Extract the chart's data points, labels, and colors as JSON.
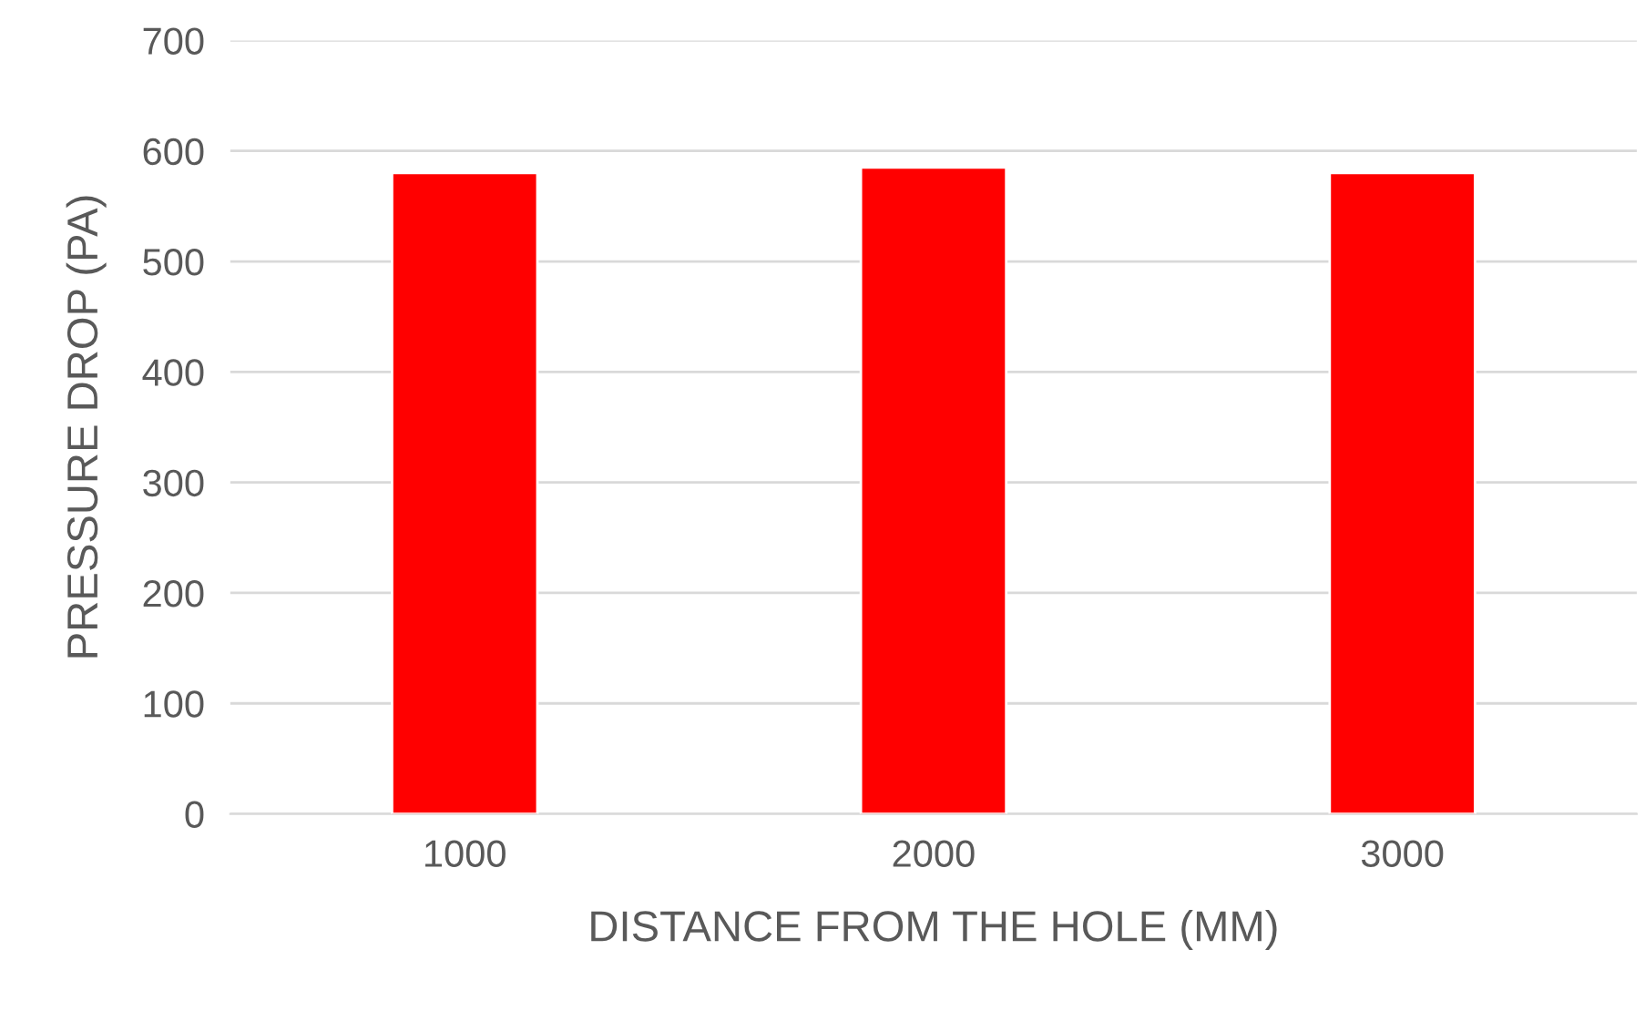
{
  "chart_data": {
    "type": "bar",
    "xlabel": "DISTANCE FROM THE HOLE (MM)",
    "ylabel": "PRESSURE DROP (PA)",
    "categories": [
      "1000",
      "2000",
      "3000"
    ],
    "values": [
      580,
      585,
      580
    ],
    "color": "#ff0000",
    "ylim": [
      0,
      700
    ],
    "yticks": [
      0,
      100,
      200,
      300,
      400,
      500,
      600,
      700
    ],
    "grid": "y"
  }
}
